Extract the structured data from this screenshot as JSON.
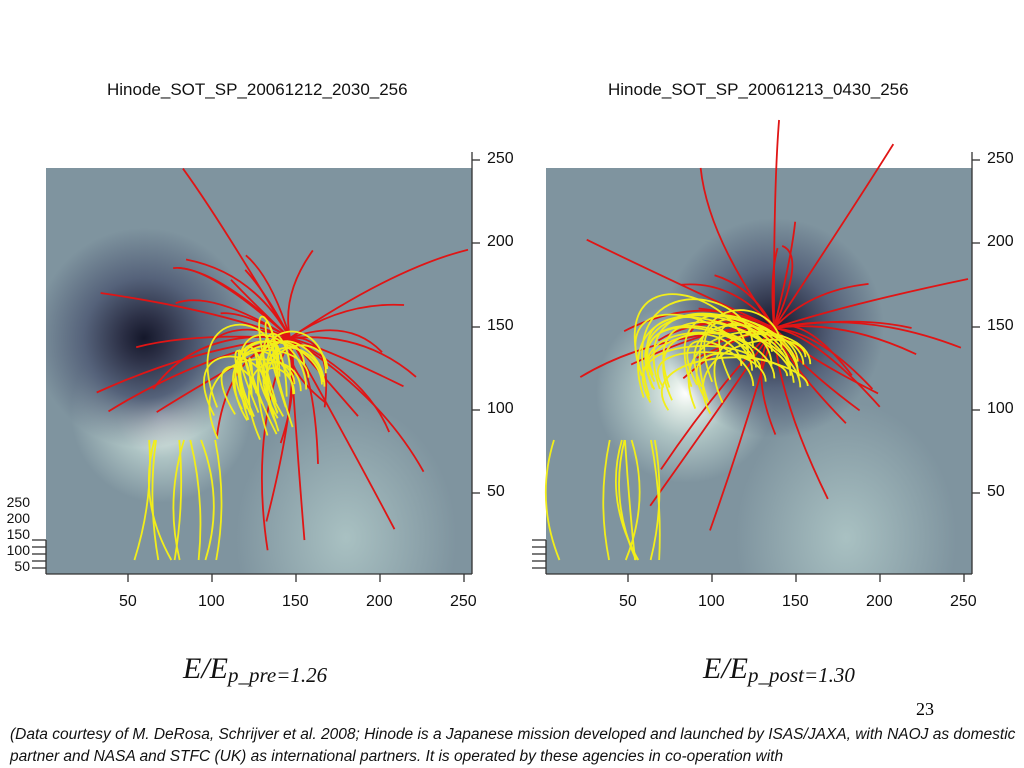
{
  "panels": [
    {
      "title": "Hinode_SOT_SP_20061212_2030_256",
      "ratio_main": "E/E",
      "ratio_sub": "p_pre=1.26"
    },
    {
      "title": "Hinode_SOT_SP_20061213_0430_256",
      "ratio_main": "E/E",
      "ratio_sub": "p_post=1.30"
    }
  ],
  "x_ticks": [
    "50",
    "100",
    "150",
    "200",
    "250"
  ],
  "y_ticks": [
    "250",
    "200",
    "150",
    "100",
    "50"
  ],
  "page_number": "23",
  "credit_text": "(Data courtesy of M. DeRosa, Schrijver et al. 2008; Hinode is a Japanese mission developed and launched by ISAS/JAXA, with NAOJ as domestic partner and NASA and STFC (UK) as international partners. It is operated by these agencies in co-operation with",
  "colors": {
    "background_field": "#7f949f",
    "closed_lines": "#f2ee1a",
    "open_lines": "#e01515"
  }
}
